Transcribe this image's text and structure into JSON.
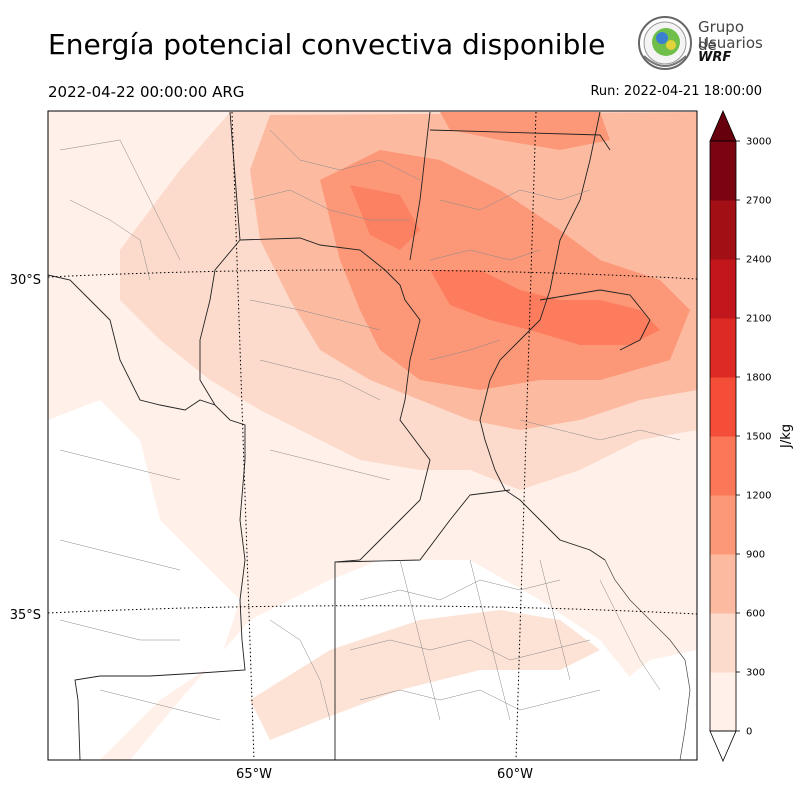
{
  "title": "Energía potencial convectiva disponible",
  "valid_time": "2022-04-22 00:00:00 ARG",
  "run_time": "Run: 2022-04-21 18:00:00",
  "logo": {
    "line1": "Grupo de",
    "line2": "Usuarios",
    "line3": "WRF"
  },
  "axes": {
    "lat_labels": [
      "30°S",
      "35°S"
    ],
    "lon_labels": [
      "65°W",
      "60°W"
    ]
  },
  "colorbar": {
    "unit": "J/kg",
    "ticks": [
      "0",
      "300",
      "600",
      "900",
      "1200",
      "1500",
      "1800",
      "2100",
      "2400",
      "2700",
      "3000"
    ],
    "colors": [
      "#fff0e9",
      "#fddbcc",
      "#fcbba1",
      "#fc9878",
      "#fb7758",
      "#f44d38",
      "#dd2a25",
      "#c1161c",
      "#a20f15",
      "#7a0510",
      "#67000d"
    ]
  }
}
